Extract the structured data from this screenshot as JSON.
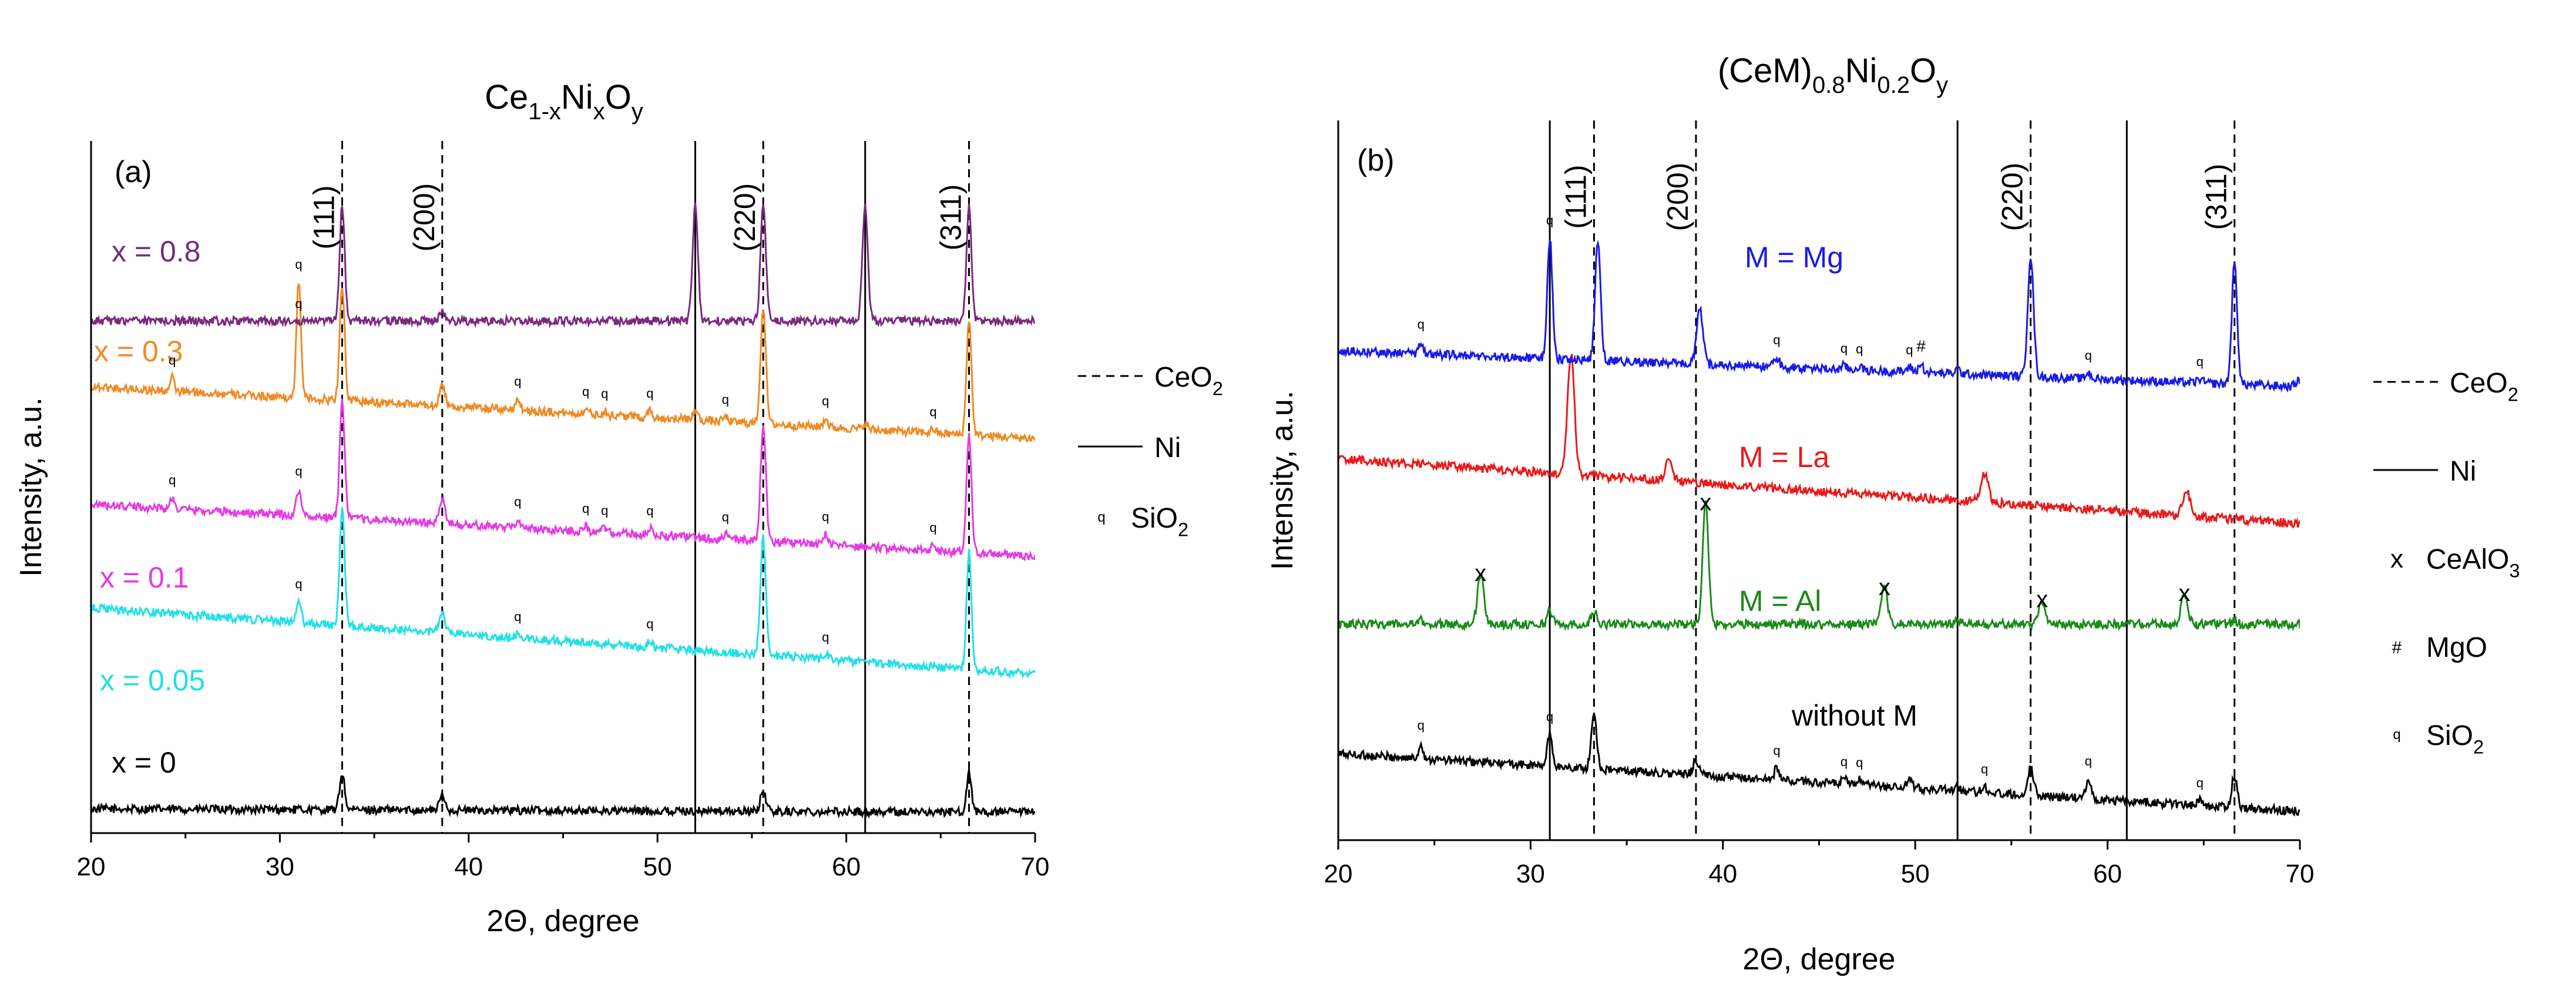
{
  "chart_data": [
    {
      "panel": "(a)",
      "type": "line",
      "title": "Ce1-xNixOy",
      "title_parts": [
        "Ce",
        "1-x",
        "Ni",
        "x",
        "O",
        "y"
      ],
      "xlabel": "2Θ, degree",
      "ylabel": "Intensity, a.u.",
      "xlim": [
        20,
        70
      ],
      "xticks": [
        20,
        30,
        40,
        50,
        60,
        70
      ],
      "grid": false,
      "series": [
        {
          "name": "x = 0",
          "color": "#000000",
          "offset": 0.03,
          "baseline": 0.055,
          "slope": 0.05,
          "drop": 0,
          "peaks": [
            [
              33.3,
              0.38,
              0.13
            ],
            [
              38.6,
              0.13,
              0.15
            ],
            [
              55.6,
              0.22,
              0.14
            ],
            [
              66.5,
              0.4,
              0.13
            ]
          ]
        },
        {
          "name": "x = 0.05",
          "color": "#22e0e6",
          "offset": 0.23,
          "baseline": 0.19,
          "slope": 0.0,
          "drop": 0.19,
          "peaks": [
            [
              31.0,
              0.22,
              0.12
            ],
            [
              33.3,
              1.2,
              0.13
            ],
            [
              38.6,
              0.2,
              0.15
            ],
            [
              42.6,
              0.04,
              0.12
            ],
            [
              49.6,
              0.06,
              0.12
            ],
            [
              55.6,
              1.2,
              0.14
            ],
            [
              58.9,
              0.05,
              0.12
            ],
            [
              66.5,
              1.2,
              0.13
            ]
          ]
        },
        {
          "name": "x = 0.1",
          "color": "#e43be4",
          "offset": 0.4,
          "baseline": 0.17,
          "slope": 0.0,
          "drop": 0.15,
          "peaks": [
            [
              24.3,
              0.12,
              0.1
            ],
            [
              31.0,
              0.28,
              0.12
            ],
            [
              33.3,
              1.2,
              0.13
            ],
            [
              38.6,
              0.25,
              0.15
            ],
            [
              42.6,
              0.09,
              0.12
            ],
            [
              46.2,
              0.06,
              0.12
            ],
            [
              47.2,
              0.05,
              0.12
            ],
            [
              49.6,
              0.07,
              0.12
            ],
            [
              53.6,
              0.05,
              0.12
            ],
            [
              55.6,
              1.2,
              0.14
            ],
            [
              58.9,
              0.11,
              0.12
            ],
            [
              64.6,
              0.06,
              0.12
            ],
            [
              66.5,
              1.2,
              0.13
            ]
          ]
        },
        {
          "name": "x = 0.3",
          "color": "#f08a24",
          "offset": 0.57,
          "baseline": 0.17,
          "slope": 0.0,
          "drop": 0.15,
          "peaks": [
            [
              24.3,
              0.14,
              0.1
            ],
            [
              31.0,
              1.2,
              0.12
            ],
            [
              33.3,
              1.2,
              0.13
            ],
            [
              38.6,
              0.22,
              0.15
            ],
            [
              42.6,
              0.12,
              0.12
            ],
            [
              46.2,
              0.05,
              0.12
            ],
            [
              47.2,
              0.04,
              0.12
            ],
            [
              49.6,
              0.07,
              0.12
            ],
            [
              52.0,
              0.11,
              0.12
            ],
            [
              53.6,
              0.05,
              0.12
            ],
            [
              55.6,
              1.2,
              0.14
            ],
            [
              58.9,
              0.09,
              0.12
            ],
            [
              61.0,
              0.06,
              0.12
            ],
            [
              64.6,
              0.04,
              0.12
            ],
            [
              66.5,
              1.2,
              0.13
            ]
          ]
        },
        {
          "name": "x = 0.8",
          "color": "#7a2a7e",
          "offset": 0.74,
          "baseline": 0.02,
          "slope": 0.0,
          "drop": 0.0,
          "peaks": [
            [
              33.3,
              1.2,
              0.13
            ],
            [
              38.6,
              0.1,
              0.15
            ],
            [
              52.0,
              1.2,
              0.14
            ],
            [
              55.6,
              1.2,
              0.14
            ],
            [
              61.0,
              1.2,
              0.14
            ],
            [
              66.5,
              1.2,
              0.13
            ]
          ]
        }
      ],
      "reference_lines": {
        "CeO2": [
          33.3,
          38.6,
          55.6,
          66.5
        ],
        "Ni": [
          52.0,
          61.0
        ]
      },
      "hkl_labels": [
        {
          "text": "(111)",
          "x": 33.3
        },
        {
          "text": "(200)",
          "x": 38.6
        },
        {
          "text": "(220)",
          "x": 55.6
        },
        {
          "text": "(311)",
          "x": 66.5
        }
      ],
      "markers": [
        {
          "symbol": "q",
          "x": 31.0,
          "series": 4
        },
        {
          "symbol": "q",
          "x": 24.3,
          "series": 3
        },
        {
          "symbol": "q",
          "x": 31.0,
          "series": 3
        },
        {
          "symbol": "q",
          "x": 42.6,
          "series": 3
        },
        {
          "symbol": "q",
          "x": 46.2,
          "series": 3
        },
        {
          "symbol": "q",
          "x": 47.2,
          "series": 3
        },
        {
          "symbol": "q",
          "x": 49.6,
          "series": 3
        },
        {
          "symbol": "q",
          "x": 53.6,
          "series": 3
        },
        {
          "symbol": "q",
          "x": 58.9,
          "series": 3
        },
        {
          "symbol": "q",
          "x": 64.6,
          "series": 3
        },
        {
          "symbol": "q",
          "x": 24.3,
          "series": 2
        },
        {
          "symbol": "q",
          "x": 31.0,
          "series": 2
        },
        {
          "symbol": "q",
          "x": 42.6,
          "series": 2
        },
        {
          "symbol": "q",
          "x": 46.2,
          "series": 2
        },
        {
          "symbol": "q",
          "x": 47.2,
          "series": 2
        },
        {
          "symbol": "q",
          "x": 49.6,
          "series": 2
        },
        {
          "symbol": "q",
          "x": 53.6,
          "series": 2
        },
        {
          "symbol": "q",
          "x": 58.9,
          "series": 2
        },
        {
          "symbol": "q",
          "x": 64.6,
          "series": 2
        },
        {
          "symbol": "q",
          "x": 31.0,
          "series": 1
        },
        {
          "symbol": "q",
          "x": 42.6,
          "series": 1
        },
        {
          "symbol": "q",
          "x": 49.6,
          "series": 1
        },
        {
          "symbol": "q",
          "x": 58.9,
          "series": 1
        }
      ],
      "legend": [
        {
          "label": "CeO",
          "sub": "2",
          "style": "dashed"
        },
        {
          "label": "Ni",
          "sub": "",
          "style": "solid"
        },
        {
          "label": "SiO",
          "sub": "2",
          "style": "q"
        }
      ]
    },
    {
      "panel": "(b)",
      "type": "line",
      "title": "(CeM)0.8Ni0.2Oy",
      "title_parts": [
        "(CeM)",
        "0.8",
        "Ni",
        "0.2",
        "O",
        "y"
      ],
      "xlabel": "2Θ, degree",
      "ylabel": "Intensity, a.u.",
      "xlim": [
        20,
        70
      ],
      "xticks": [
        20,
        30,
        40,
        50,
        60,
        70
      ],
      "grid": false,
      "series": [
        {
          "name": "without M",
          "color": "#000000",
          "offset": 0.04,
          "baseline": 0.2,
          "slope": 0.0,
          "drop": 0.16,
          "peaks": [
            [
              24.3,
              0.16,
              0.1
            ],
            [
              31.0,
              0.32,
              0.13
            ],
            [
              33.3,
              0.55,
              0.14
            ],
            [
              38.6,
              0.15,
              0.16
            ],
            [
              42.8,
              0.12,
              0.13
            ],
            [
              46.3,
              0.05,
              0.13
            ],
            [
              47.1,
              0.05,
              0.13
            ],
            [
              49.7,
              0.08,
              0.13
            ],
            [
              52.2,
              0.05,
              0.13
            ],
            [
              53.6,
              0.06,
              0.13
            ],
            [
              56.0,
              0.28,
              0.15
            ],
            [
              59.0,
              0.2,
              0.13
            ],
            [
              64.8,
              0.05,
              0.13
            ],
            [
              66.6,
              0.32,
              0.14
            ]
          ]
        },
        {
          "name": "M = Al",
          "color": "#1b8a1b",
          "offset": 0.3,
          "baseline": 0.02,
          "slope": 0.0,
          "drop": 0.0,
          "peaks": [
            [
              24.3,
              0.04,
              0.1
            ],
            [
              27.4,
              0.5,
              0.16
            ],
            [
              31.0,
              0.15,
              0.13
            ],
            [
              33.3,
              0.13,
              0.14
            ],
            [
              39.1,
              1.2,
              0.15
            ],
            [
              48.4,
              0.36,
              0.16
            ],
            [
              52.2,
              0.04,
              0.14
            ],
            [
              56.6,
              0.24,
              0.16
            ],
            [
              64.0,
              0.3,
              0.17
            ],
            [
              66.6,
              0.04,
              0.14
            ]
          ]
        },
        {
          "name": "M = La",
          "color": "#e81a1a",
          "offset": 0.44,
          "baseline": 0.2,
          "slope": 0.0,
          "drop": 0.18,
          "peaks": [
            [
              32.1,
              1.2,
              0.18
            ],
            [
              37.2,
              0.2,
              0.18
            ],
            [
              53.6,
              0.28,
              0.2
            ],
            [
              64.1,
              0.25,
              0.2
            ]
          ]
        },
        {
          "name": "M = Mg",
          "color": "#1a1ae6",
          "offset": 0.63,
          "baseline": 0.12,
          "slope": 0.0,
          "drop": 0.1,
          "peaks": [
            [
              24.3,
              0.12,
              0.1
            ],
            [
              31.0,
              1.2,
              0.13
            ],
            [
              33.5,
              1.2,
              0.14
            ],
            [
              38.8,
              0.55,
              0.16
            ],
            [
              42.8,
              0.1,
              0.13
            ],
            [
              46.3,
              0.04,
              0.13
            ],
            [
              47.1,
              0.04,
              0.13
            ],
            [
              49.7,
              0.05,
              0.13
            ],
            [
              50.3,
              0.08,
              0.13
            ],
            [
              52.2,
              0.05,
              0.13
            ],
            [
              56.0,
              1.2,
              0.15
            ],
            [
              59.0,
              0.06,
              0.13
            ],
            [
              64.8,
              0.04,
              0.13
            ],
            [
              66.6,
              1.2,
              0.14
            ],
            [
              69.9,
              0.06,
              0.13
            ]
          ]
        }
      ],
      "reference_lines": {
        "CeO2": [
          33.3,
          38.6,
          56.0,
          66.6
        ],
        "Ni": [
          31.0,
          52.2,
          61.0
        ]
      },
      "hkl_labels": [
        {
          "text": "(111)",
          "x": 33.3
        },
        {
          "text": "(200)",
          "x": 38.6
        },
        {
          "text": "(220)",
          "x": 56.0
        },
        {
          "text": "(311)",
          "x": 66.6
        }
      ],
      "markers": [
        {
          "symbol": "q",
          "x": 24.3,
          "series": 3
        },
        {
          "symbol": "q",
          "x": 31.0,
          "series": 3
        },
        {
          "symbol": "q",
          "x": 42.8,
          "series": 3
        },
        {
          "symbol": "q",
          "x": 46.3,
          "series": 3
        },
        {
          "symbol": "q",
          "x": 47.1,
          "series": 3
        },
        {
          "symbol": "q",
          "x": 49.7,
          "series": 3
        },
        {
          "symbol": "#",
          "x": 50.3,
          "series": 3
        },
        {
          "symbol": "q",
          "x": 59.0,
          "series": 3
        },
        {
          "symbol": "q",
          "x": 64.8,
          "series": 3
        },
        {
          "symbol": "x",
          "x": 27.4,
          "series": 1
        },
        {
          "symbol": "x",
          "x": 39.1,
          "series": 1
        },
        {
          "symbol": "x",
          "x": 48.4,
          "series": 1
        },
        {
          "symbol": "x",
          "x": 56.6,
          "series": 1
        },
        {
          "symbol": "x",
          "x": 64.0,
          "series": 1
        },
        {
          "symbol": "q",
          "x": 24.3,
          "series": 0
        },
        {
          "symbol": "q",
          "x": 31.0,
          "series": 0
        },
        {
          "symbol": "q",
          "x": 42.8,
          "series": 0
        },
        {
          "symbol": "q",
          "x": 46.3,
          "series": 0
        },
        {
          "symbol": "q",
          "x": 47.1,
          "series": 0
        },
        {
          "symbol": "q",
          "x": 53.6,
          "series": 0
        },
        {
          "symbol": "q",
          "x": 59.0,
          "series": 0
        },
        {
          "symbol": "q",
          "x": 64.8,
          "series": 0
        }
      ],
      "legend": [
        {
          "label": "CeO",
          "sub": "2",
          "style": "dashed"
        },
        {
          "label": "Ni",
          "sub": "",
          "style": "solid"
        },
        {
          "label": "CeAlO",
          "sub": "3",
          "style": "x"
        },
        {
          "label": "MgO",
          "sub": "",
          "style": "#"
        },
        {
          "label": "SiO",
          "sub": "2",
          "style": "q"
        }
      ]
    }
  ]
}
